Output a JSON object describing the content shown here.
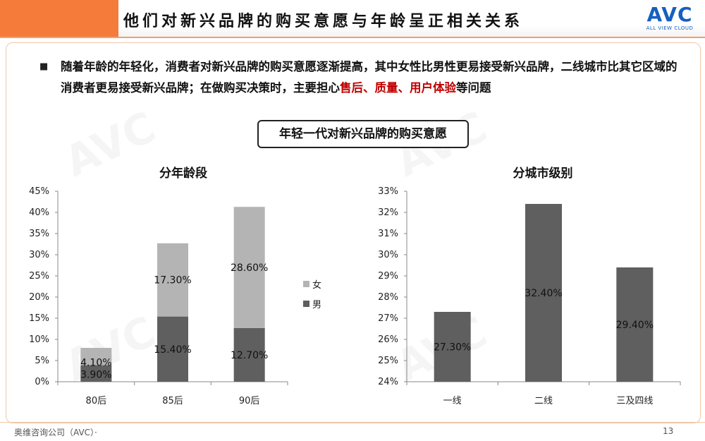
{
  "header": {
    "title": "他们对新兴品牌的购买意愿与年龄呈正相关关系",
    "logo_text": "AVC",
    "logo_subtext": "ALL VIEW CLOUD"
  },
  "bullet": {
    "marker": "■",
    "text_part1": "随着年龄的年轻化，消费者对新兴品牌的购买意愿逐渐提高，其中女性比男性更易接受新兴品牌，二线城市比其它区域的消费者更易接受新兴品牌；在做购买决策时，主要担心",
    "text_highlight": "售后、质量、用户体验",
    "text_part2": "等问题"
  },
  "subtitle": "年轻一代对新兴品牌的购买意愿",
  "chart_data": [
    {
      "type": "bar",
      "stacked": true,
      "title": "分年龄段",
      "categories": [
        "80后",
        "85后",
        "90后"
      ],
      "series": [
        {
          "name": "男",
          "values": [
            3.9,
            15.4,
            12.7
          ],
          "labels": [
            "3.90%",
            "15.40%",
            "12.70%"
          ],
          "color": "#5f5f5f"
        },
        {
          "name": "女",
          "values": [
            4.1,
            17.3,
            28.6
          ],
          "labels": [
            "4.10%",
            "17.30%",
            "28.60%"
          ],
          "color": "#b4b4b4"
        }
      ],
      "ylim": [
        0,
        45
      ],
      "yticks": [
        "0%",
        "5%",
        "10%",
        "15%",
        "20%",
        "25%",
        "30%",
        "35%",
        "40%",
        "45%"
      ],
      "legend_position": "right",
      "legend_order": [
        "女",
        "男"
      ]
    },
    {
      "type": "bar",
      "title": "分城市级别",
      "categories": [
        "一线",
        "二线",
        "三及四线"
      ],
      "values": [
        27.3,
        32.4,
        29.4
      ],
      "labels": [
        "27.30%",
        "32.40%",
        "29.40%"
      ],
      "color": "#5f5f5f",
      "ylim": [
        24,
        33
      ],
      "yticks": [
        "24%",
        "25%",
        "26%",
        "27%",
        "28%",
        "29%",
        "30%",
        "31%",
        "32%",
        "33%"
      ]
    }
  ],
  "footer": {
    "company": "奥维咨询公司（AVC）·",
    "page": "13"
  }
}
